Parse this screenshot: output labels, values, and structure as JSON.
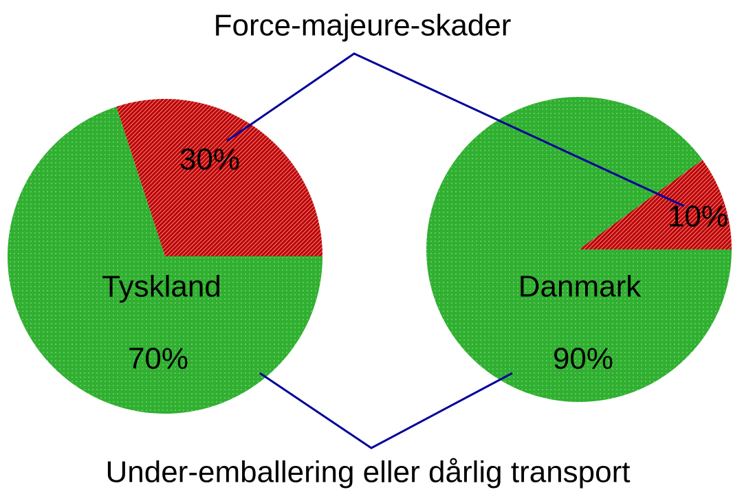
{
  "chart_data": {
    "type": "pie",
    "categories": [
      "Force-majeure-skader",
      "Under-emballering eller dårlig transport"
    ],
    "colors": [
      "#c00000",
      "#30b030"
    ],
    "series": [
      {
        "name": "Tyskland",
        "values": [
          30,
          70
        ],
        "value_labels": [
          "30%",
          "70%"
        ]
      },
      {
        "name": "Danmark",
        "values": [
          10,
          90
        ],
        "value_labels": [
          "10%",
          "90%"
        ]
      }
    ]
  }
}
